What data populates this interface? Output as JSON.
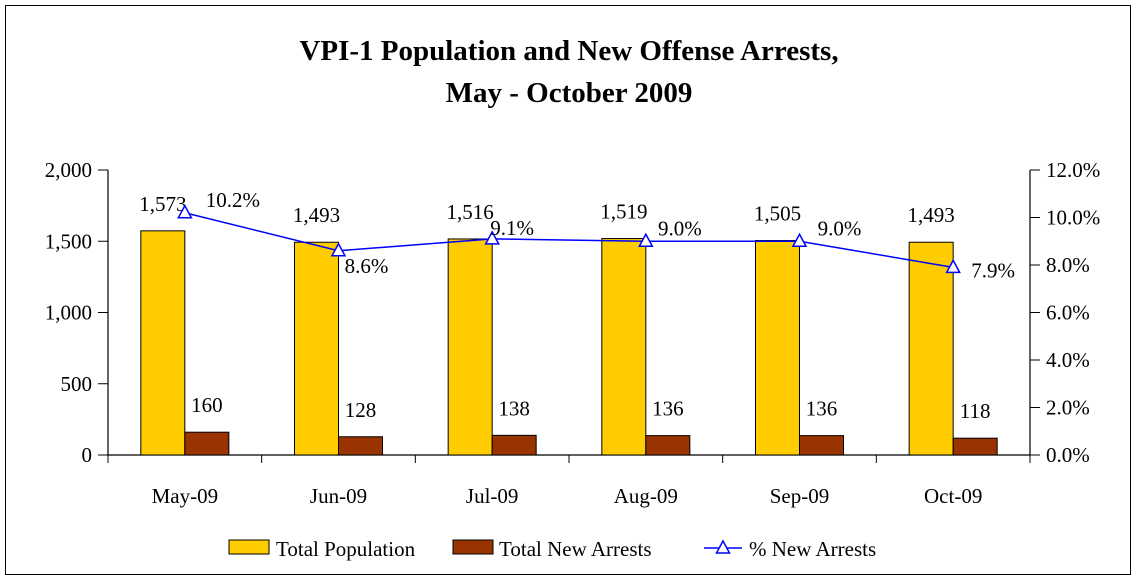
{
  "chart_data": {
    "type": "bar",
    "title_lines": [
      "VPI-1 Population and New Offense Arrests,",
      "May - October 2009"
    ],
    "categories": [
      "May-09",
      "Jun-09",
      "Jul-09",
      "Aug-09",
      "Sep-09",
      "Oct-09"
    ],
    "series": [
      {
        "name": "Total Population",
        "type": "bar",
        "axis": "left",
        "color": "#FFCC00",
        "values": [
          1573,
          1493,
          1516,
          1519,
          1505,
          1493
        ],
        "labels": [
          "1,573",
          "1,493",
          "1,516",
          "1,519",
          "1,505",
          "1,493"
        ]
      },
      {
        "name": "Total New Arrests",
        "type": "bar",
        "axis": "left",
        "color": "#993300",
        "values": [
          160,
          128,
          138,
          136,
          136,
          118
        ],
        "labels": [
          "160",
          "128",
          "138",
          "136",
          "136",
          "118"
        ]
      },
      {
        "name": "% New Arrests",
        "type": "line",
        "axis": "right",
        "color": "#0000FF",
        "marker": "triangle",
        "values": [
          10.2,
          8.6,
          9.1,
          9.0,
          9.0,
          7.9
        ],
        "labels": [
          "10.2%",
          "8.6%",
          "9.1%",
          "9.0%",
          "9.0%",
          "7.9%"
        ]
      }
    ],
    "y_left": {
      "ylim": [
        0,
        2000
      ],
      "ticks": [
        0,
        500,
        1000,
        1500,
        2000
      ],
      "tick_labels": [
        "0",
        "500",
        "1,000",
        "1,500",
        "2,000"
      ]
    },
    "y_right": {
      "ylim": [
        0,
        12
      ],
      "ticks": [
        0,
        2,
        4,
        6,
        8,
        10,
        12
      ],
      "tick_labels": [
        "0.0%",
        "2.0%",
        "4.0%",
        "6.0%",
        "8.0%",
        "10.0%",
        "12.0%"
      ]
    },
    "grid": false,
    "legend_position": "bottom"
  }
}
